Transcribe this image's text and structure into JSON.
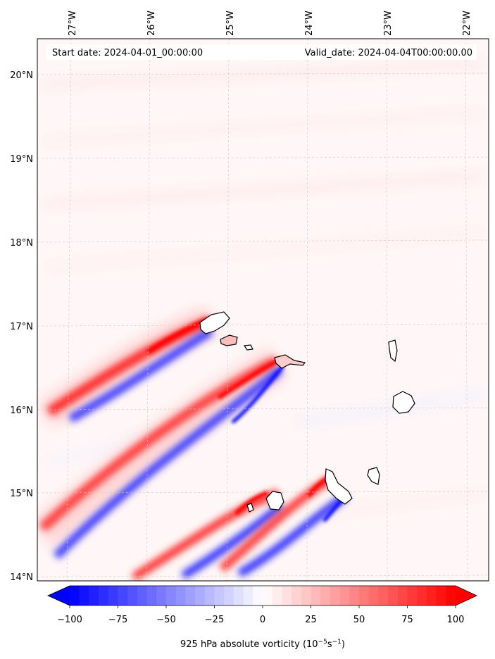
{
  "header": {
    "start_label": "Start date: 2024-04-01_00:00:00",
    "valid_label": "Valid_date: 2024-04-04T00:00:00.00"
  },
  "axes": {
    "lon_ticks": [
      "27°W",
      "26°W",
      "25°W",
      "24°W",
      "23°W",
      "22°W"
    ],
    "lat_ticks": [
      "20°N",
      "19°N",
      "18°N",
      "17°N",
      "16°N",
      "15°N",
      "14°N"
    ]
  },
  "colorbar": {
    "ticks": [
      "−100",
      "−75",
      "−50",
      "−25",
      "0",
      "25",
      "50",
      "75",
      "100"
    ],
    "label": "925 hPa absolute vorticity (10",
    "unit_exp1": "−5",
    "unit_mid": "s",
    "unit_exp2": "−1",
    "label_end": ")",
    "min": -100,
    "max": 100,
    "neg_color": "#0000ff",
    "pos_color": "#ff0000"
  },
  "chart_data": {
    "type": "heatmap",
    "variable": "925 hPa absolute vorticity",
    "units": "1e-5 s-1",
    "lon_range": [
      -27.3,
      -21.8
    ],
    "lat_range": [
      13.95,
      20.45
    ],
    "grid": true,
    "colormap": "bwr",
    "value_range": [
      -100,
      100
    ],
    "features": [
      {
        "type": "wake",
        "from_lon": -24.9,
        "from_lat": 17.0,
        "to_lon": -27.2,
        "to_lat": 15.9,
        "polarity": "positive north / negative south"
      },
      {
        "type": "wake",
        "from_lon": -23.6,
        "from_lat": 16.6,
        "to_lon": -27.3,
        "to_lat": 14.3,
        "polarity": "positive north / negative south"
      },
      {
        "type": "wake",
        "from_lon": -24.4,
        "from_lat": 14.9,
        "to_lon": -26.2,
        "to_lat": 13.95,
        "polarity": "positive north / negative south"
      },
      {
        "type": "wake",
        "from_lon": -23.3,
        "from_lat": 15.0,
        "to_lon": -24.8,
        "to_lat": 14.05,
        "polarity": "positive north / negative south"
      }
    ]
  }
}
